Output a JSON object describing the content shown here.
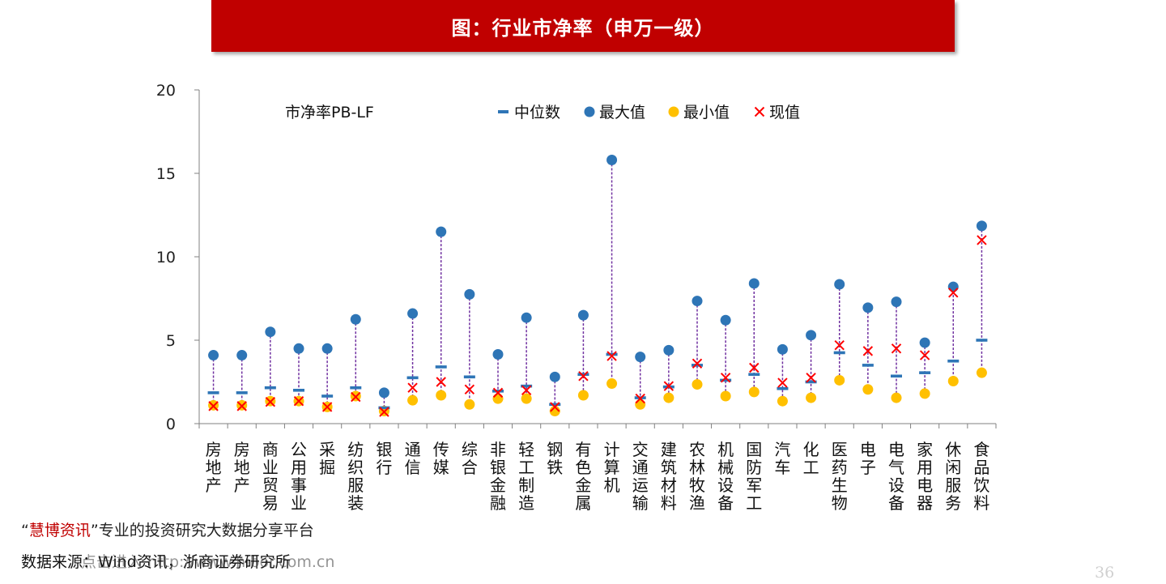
{
  "header": {
    "title": "图：行业市净率（申万一级）"
  },
  "footer": {
    "promo_quote_open": "“",
    "promo_brand": "慧博资讯",
    "promo_quote_close": "”",
    "promo_text": "专业的投资研究大数据分享平台",
    "source": "数据来源：Wind资讯，浙商证券研究所",
    "watermark": "点击进入 http://www.hibor.com.cn",
    "page_number": "36"
  },
  "colors": {
    "title_bg": "#c00000",
    "median": "#2e75b6",
    "max": "#2e75b6",
    "min": "#ffc000",
    "current": "#ff0000",
    "range_line": "#7030a0"
  },
  "chart_data": {
    "type": "scatter",
    "title": "",
    "series_label": "市净率PB-LF",
    "xlabel": "",
    "ylabel": "",
    "ylim": [
      0,
      20
    ],
    "yticks": [
      0,
      5,
      10,
      15,
      20
    ],
    "grid": false,
    "legend_position": "top",
    "legend": [
      "中位数",
      "最大值",
      "最小值",
      "现值"
    ],
    "categories": [
      "房地产",
      "房地产",
      "商业贸易",
      "公用事业",
      "采掘",
      "纺织服装",
      "银行",
      "通信",
      "传媒",
      "综合",
      "非银金融",
      "轻工制造",
      "钢铁",
      "有色金属",
      "计算机",
      "交通运输",
      "建筑材料",
      "农林牧渔",
      "机械设备",
      "国防军工",
      "汽车",
      "化工",
      "医药生物",
      "电子",
      "电气设备",
      "家用电器",
      "休闲服务",
      "食品饮料"
    ],
    "series": [
      {
        "name": "中位数",
        "values": [
          1.85,
          1.85,
          2.15,
          2.0,
          1.65,
          2.15,
          0.95,
          2.75,
          3.4,
          2.8,
          1.95,
          2.25,
          1.15,
          2.95,
          4.15,
          1.55,
          2.2,
          3.5,
          2.6,
          2.95,
          2.1,
          2.5,
          4.25,
          3.5,
          2.85,
          3.05,
          3.75,
          5.0
        ]
      },
      {
        "name": "最大值",
        "values": [
          4.1,
          4.1,
          5.5,
          4.5,
          4.5,
          6.25,
          1.85,
          6.6,
          11.5,
          7.75,
          4.15,
          6.35,
          2.8,
          6.5,
          15.8,
          4.0,
          4.4,
          7.35,
          6.2,
          8.4,
          4.45,
          5.3,
          8.35,
          6.95,
          7.3,
          4.85,
          8.2,
          11.85
        ]
      },
      {
        "name": "最小值",
        "values": [
          1.1,
          1.1,
          1.35,
          1.35,
          1.0,
          1.65,
          0.75,
          1.4,
          1.7,
          1.15,
          1.5,
          1.5,
          0.75,
          1.7,
          2.4,
          1.15,
          1.55,
          2.35,
          1.65,
          1.9,
          1.35,
          1.55,
          2.6,
          2.05,
          1.55,
          1.8,
          2.55,
          3.05
        ]
      },
      {
        "name": "现值",
        "values": [
          1.05,
          1.05,
          1.3,
          1.35,
          1.0,
          1.6,
          0.7,
          2.15,
          2.5,
          2.05,
          1.85,
          2.0,
          1.0,
          2.85,
          4.05,
          1.5,
          2.25,
          3.6,
          2.75,
          3.35,
          2.45,
          2.75,
          4.7,
          4.35,
          4.5,
          4.1,
          7.85,
          11.0
        ]
      }
    ]
  }
}
